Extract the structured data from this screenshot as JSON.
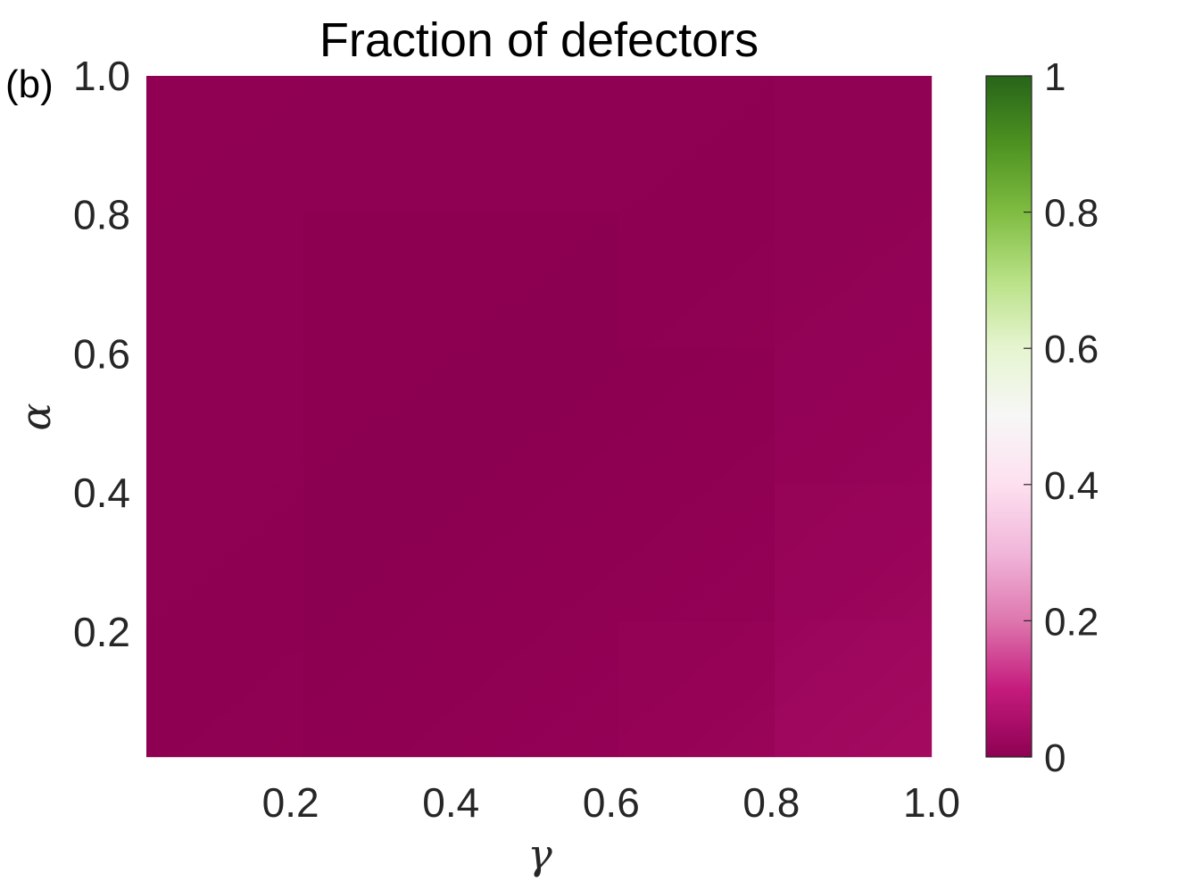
{
  "panel_label": "(b)",
  "chart_data": {
    "type": "heatmap",
    "title": "Fraction of defectors",
    "xlabel": "γ",
    "ylabel": "α",
    "xlim": [
      0.02,
      1.0
    ],
    "ylim": [
      0.02,
      1.0
    ],
    "x_ticks": [
      0.2,
      0.4,
      0.6,
      0.8,
      1.0
    ],
    "x_tick_labels": [
      "0.2",
      "0.4",
      "0.6",
      "0.8",
      "1.0"
    ],
    "y_ticks": [
      0.2,
      0.4,
      0.6,
      0.8,
      1.0
    ],
    "y_tick_labels": [
      "0.2",
      "0.4",
      "0.6",
      "0.8",
      "1.0"
    ],
    "colorbar": {
      "limits": [
        0,
        1
      ],
      "ticks": [
        0,
        0.2,
        0.4,
        0.6,
        0.8,
        1
      ],
      "tick_labels": [
        "0",
        "0.2",
        "0.4",
        "0.6",
        "0.8",
        "1"
      ],
      "colormap": [
        "#8e0152",
        "#c51b7d",
        "#de77ae",
        "#f1b6da",
        "#fde0ef",
        "#f7f7f7",
        "#e6f5d0",
        "#b8e186",
        "#7fbc41",
        "#4d9221",
        "#276419"
      ]
    },
    "grid": false,
    "x": [
      0.1,
      0.3,
      0.5,
      0.7,
      0.9
    ],
    "y": [
      0.1,
      0.3,
      0.5,
      0.7,
      0.9
    ],
    "z": [
      [
        0.01,
        0.0,
        0.0,
        0.01,
        0.04
      ],
      [
        0.01,
        0.0,
        0.0,
        0.0,
        0.03
      ],
      [
        0.01,
        0.0,
        0.0,
        0.0,
        0.02
      ],
      [
        0.01,
        0.0,
        0.0,
        0.01,
        0.02
      ],
      [
        0.01,
        0.01,
        0.01,
        0.01,
        0.02
      ]
    ]
  }
}
